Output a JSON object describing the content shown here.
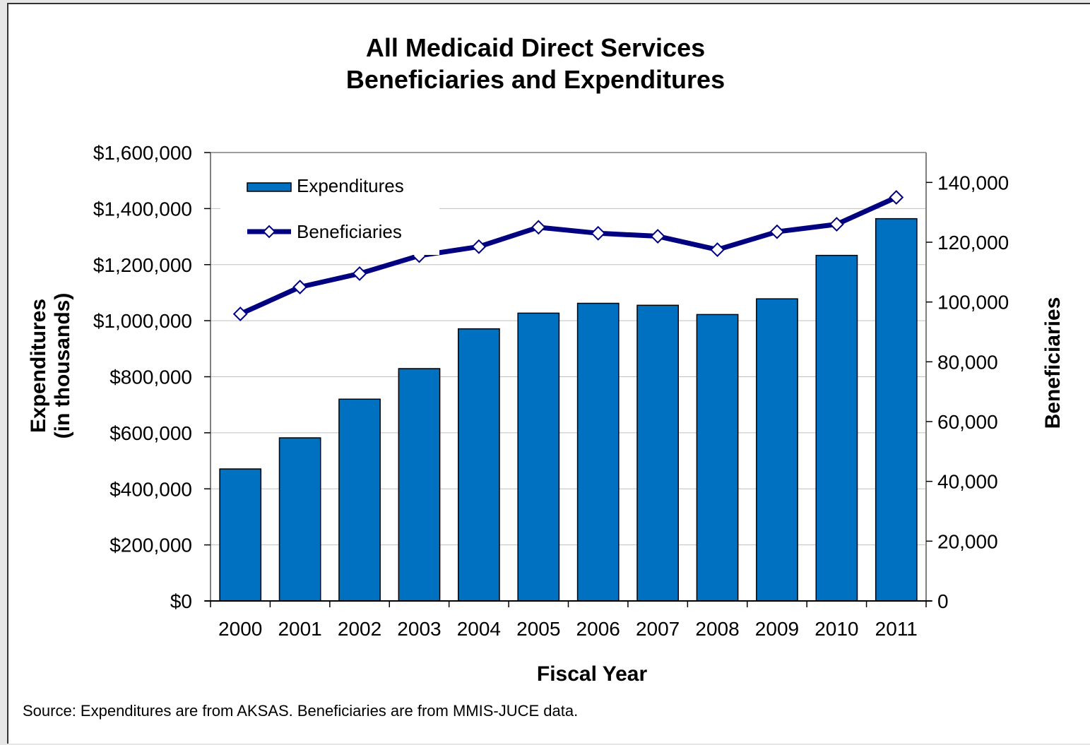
{
  "chart_data": {
    "type": "bar",
    "title_lines": [
      "All Medicaid Direct Services",
      "Beneficiaries and Expenditures"
    ],
    "categories": [
      "2000",
      "2001",
      "2002",
      "2003",
      "2004",
      "2005",
      "2006",
      "2007",
      "2008",
      "2009",
      "2010",
      "2011"
    ],
    "series": [
      {
        "name": "Expenditures",
        "type": "bar",
        "axis": "left",
        "color": "#0070C0",
        "values": [
          471000,
          582000,
          720000,
          829000,
          971000,
          1027000,
          1062000,
          1055000,
          1022000,
          1078000,
          1233000,
          1364000
        ]
      },
      {
        "name": "Beneficiaries",
        "type": "line",
        "axis": "right",
        "color": "#000080",
        "marker": "diamond",
        "values": [
          96000,
          105000,
          109500,
          115500,
          118500,
          125000,
          123000,
          122000,
          117500,
          123500,
          126000,
          135000
        ]
      }
    ],
    "xlabel": "Fiscal Year",
    "ylabel_lines": [
      "Expenditures",
      "(in thousands)"
    ],
    "y2label": "Beneficiaries",
    "ylim": [
      0,
      1600000
    ],
    "y2lim": [
      0,
      150000
    ],
    "yticks": [
      "$0",
      "$200,000",
      "$400,000",
      "$600,000",
      "$800,000",
      "$1,000,000",
      "$1,200,000",
      "$1,400,000",
      "$1,600,000"
    ],
    "y2ticks": [
      "0",
      "20,000",
      "40,000",
      "60,000",
      "80,000",
      "100,000",
      "120,000",
      "140,000"
    ],
    "grid": true,
    "legend_position": "top-left",
    "source_note": "Source: Expenditures are from AKSAS. Beneficiaries are from MMIS-JUCE data."
  }
}
